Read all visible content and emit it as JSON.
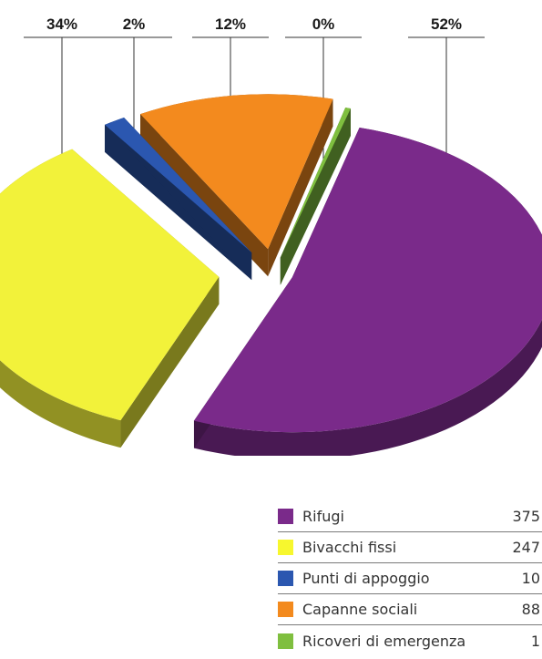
{
  "chart_data": {
    "type": "pie",
    "title": "",
    "categories": [
      "Rifugi",
      "Bivacchi fissi",
      "Punti di appoggio",
      "Capanne sociali",
      "Ricoveri di emergenza"
    ],
    "values": [
      375,
      247,
      10,
      88,
      1
    ],
    "percent_labels": [
      "52%",
      "34%",
      "2%",
      "12%",
      "0%"
    ],
    "colors": [
      "#7a2a8a",
      "#f2f23a",
      "#2b57b0",
      "#f38a1e",
      "#7fbf3f"
    ],
    "style": "3d-exploded",
    "legend": "bottom-right"
  },
  "legend": {
    "items": [
      {
        "label": "Rifugi",
        "value": "375",
        "color": "#7a2a8a"
      },
      {
        "label": "Bivacchi fissi",
        "value": "247",
        "color": "#f7f72e"
      },
      {
        "label": "Punti di appoggio",
        "value": "10",
        "color": "#2b57b0"
      },
      {
        "label": "Capanne sociali",
        "value": "88",
        "color": "#f38a1e"
      },
      {
        "label": "Ricoveri di emergenza",
        "value": "1",
        "color": "#7fbf3f"
      }
    ]
  }
}
